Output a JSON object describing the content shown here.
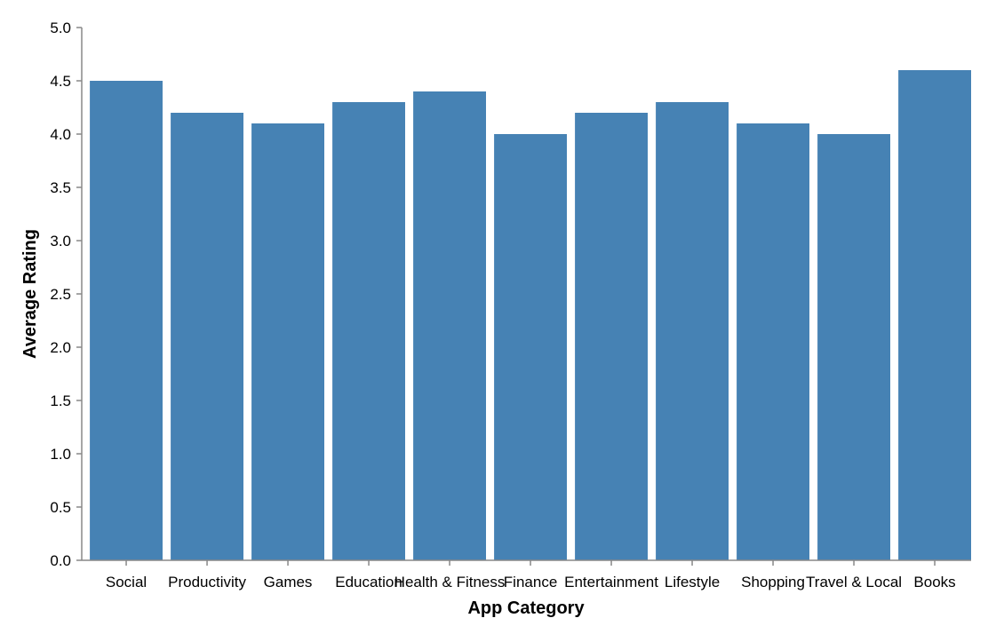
{
  "chart_data": {
    "type": "bar",
    "categories": [
      "Social",
      "Productivity",
      "Games",
      "Education",
      "Health & Fitness",
      "Finance",
      "Entertainment",
      "Lifestyle",
      "Shopping",
      "Travel & Local",
      "Books"
    ],
    "values": [
      4.5,
      4.2,
      4.1,
      4.3,
      4.4,
      4.0,
      4.2,
      4.3,
      4.1,
      4.0,
      4.6
    ],
    "title": "",
    "xlabel": "App Category",
    "ylabel": "Average Rating",
    "ylim": [
      0,
      5
    ],
    "yticks": [
      "0.0",
      "0.5",
      "1.0",
      "1.5",
      "2.0",
      "2.5",
      "3.0",
      "3.5",
      "4.0",
      "4.5",
      "5.0"
    ],
    "grid": false,
    "legend": "none",
    "bar_color": "#4682b4"
  }
}
